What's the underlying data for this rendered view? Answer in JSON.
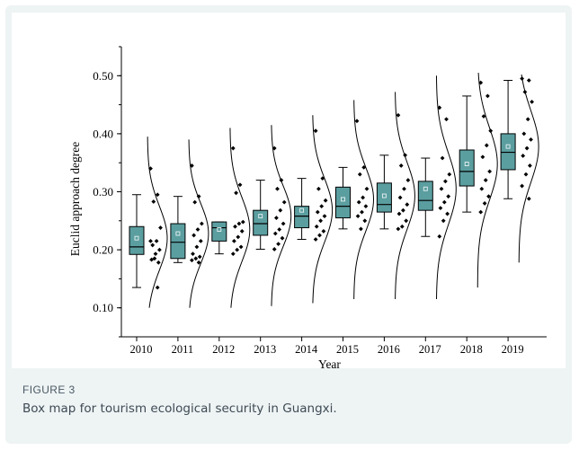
{
  "figure": {
    "label": "FIGURE 3",
    "caption": "Box map for tourism ecological security in Guangxi."
  },
  "chart_data": {
    "type": "box",
    "xlabel": "Year",
    "ylabel": "Euclid approach degree",
    "ylim": [
      0.05,
      0.55
    ],
    "yticks": [
      0.1,
      0.2,
      0.3,
      0.4,
      0.5
    ],
    "ytick_labels": [
      "0.10",
      "0.20",
      "0.30",
      "0.40",
      "0.50"
    ],
    "categories": [
      "2010",
      "2011",
      "2012",
      "2013",
      "2014",
      "2015",
      "2016",
      "2017",
      "2018",
      "2019"
    ],
    "box_fill": "#5b9ea0",
    "boxes": [
      {
        "q1": 0.192,
        "median": 0.205,
        "q3": 0.24,
        "mean": 0.22,
        "whisker_low": 0.135,
        "whisker_high": 0.295
      },
      {
        "q1": 0.185,
        "median": 0.213,
        "q3": 0.245,
        "mean": 0.228,
        "whisker_low": 0.178,
        "whisker_high": 0.292
      },
      {
        "q1": 0.215,
        "median": 0.238,
        "q3": 0.248,
        "mean": 0.235,
        "whisker_low": 0.193,
        "whisker_high": 0.248
      },
      {
        "q1": 0.225,
        "median": 0.245,
        "q3": 0.268,
        "mean": 0.258,
        "whisker_low": 0.201,
        "whisker_high": 0.32
      },
      {
        "q1": 0.238,
        "median": 0.258,
        "q3": 0.275,
        "mean": 0.268,
        "whisker_low": 0.218,
        "whisker_high": 0.323
      },
      {
        "q1": 0.255,
        "median": 0.275,
        "q3": 0.308,
        "mean": 0.287,
        "whisker_low": 0.236,
        "whisker_high": 0.342
      },
      {
        "q1": 0.265,
        "median": 0.278,
        "q3": 0.315,
        "mean": 0.293,
        "whisker_low": 0.236,
        "whisker_high": 0.363
      },
      {
        "q1": 0.268,
        "median": 0.285,
        "q3": 0.318,
        "mean": 0.305,
        "whisker_low": 0.223,
        "whisker_high": 0.358
      },
      {
        "q1": 0.31,
        "median": 0.335,
        "q3": 0.372,
        "mean": 0.348,
        "whisker_low": 0.265,
        "whisker_high": 0.465
      },
      {
        "q1": 0.338,
        "median": 0.368,
        "q3": 0.4,
        "mean": 0.378,
        "whisker_low": 0.288,
        "whisker_high": 0.492
      }
    ],
    "points": [
      [
        0.34,
        0.295,
        0.283,
        0.238,
        0.215,
        0.208,
        0.2,
        0.193,
        0.183,
        0.178,
        0.185,
        0.215,
        0.135
      ],
      [
        0.345,
        0.292,
        0.282,
        0.245,
        0.235,
        0.225,
        0.215,
        0.205,
        0.193,
        0.188,
        0.185,
        0.182,
        0.178
      ],
      [
        0.375,
        0.312,
        0.298,
        0.248,
        0.245,
        0.24,
        0.232,
        0.222,
        0.215,
        0.205,
        0.2,
        0.193
      ],
      [
        0.375,
        0.32,
        0.305,
        0.282,
        0.268,
        0.255,
        0.245,
        0.235,
        0.228,
        0.22,
        0.21,
        0.201
      ],
      [
        0.405,
        0.323,
        0.305,
        0.285,
        0.275,
        0.265,
        0.258,
        0.25,
        0.24,
        0.232,
        0.225,
        0.218
      ],
      [
        0.422,
        0.342,
        0.33,
        0.305,
        0.29,
        0.282,
        0.275,
        0.265,
        0.258,
        0.25,
        0.236
      ],
      [
        0.432,
        0.363,
        0.345,
        0.32,
        0.305,
        0.29,
        0.278,
        0.268,
        0.262,
        0.25,
        0.24,
        0.236
      ],
      [
        0.445,
        0.425,
        0.358,
        0.33,
        0.318,
        0.305,
        0.292,
        0.282,
        0.272,
        0.262,
        0.25,
        0.223
      ],
      [
        0.488,
        0.465,
        0.43,
        0.405,
        0.38,
        0.36,
        0.335,
        0.32,
        0.305,
        0.292,
        0.28,
        0.265
      ],
      [
        0.495,
        0.492,
        0.472,
        0.455,
        0.425,
        0.4,
        0.39,
        0.375,
        0.362,
        0.345,
        0.33,
        0.31,
        0.288
      ]
    ],
    "curves": [
      {
        "center": 0.22,
        "sd": 0.055,
        "low": 0.1,
        "high": 0.395
      },
      {
        "center": 0.228,
        "sd": 0.052,
        "low": 0.1,
        "high": 0.39
      },
      {
        "center": 0.235,
        "sd": 0.055,
        "low": 0.1,
        "high": 0.41
      },
      {
        "center": 0.258,
        "sd": 0.052,
        "low": 0.103,
        "high": 0.415
      },
      {
        "center": 0.268,
        "sd": 0.055,
        "low": 0.108,
        "high": 0.432
      },
      {
        "center": 0.287,
        "sd": 0.055,
        "low": 0.115,
        "high": 0.458
      },
      {
        "center": 0.293,
        "sd": 0.058,
        "low": 0.115,
        "high": 0.472
      },
      {
        "center": 0.305,
        "sd": 0.062,
        "low": 0.115,
        "high": 0.5
      },
      {
        "center": 0.348,
        "sd": 0.062,
        "low": 0.135,
        "high": 0.505
      },
      {
        "center": 0.378,
        "sd": 0.062,
        "low": 0.178,
        "high": 0.502
      }
    ]
  }
}
